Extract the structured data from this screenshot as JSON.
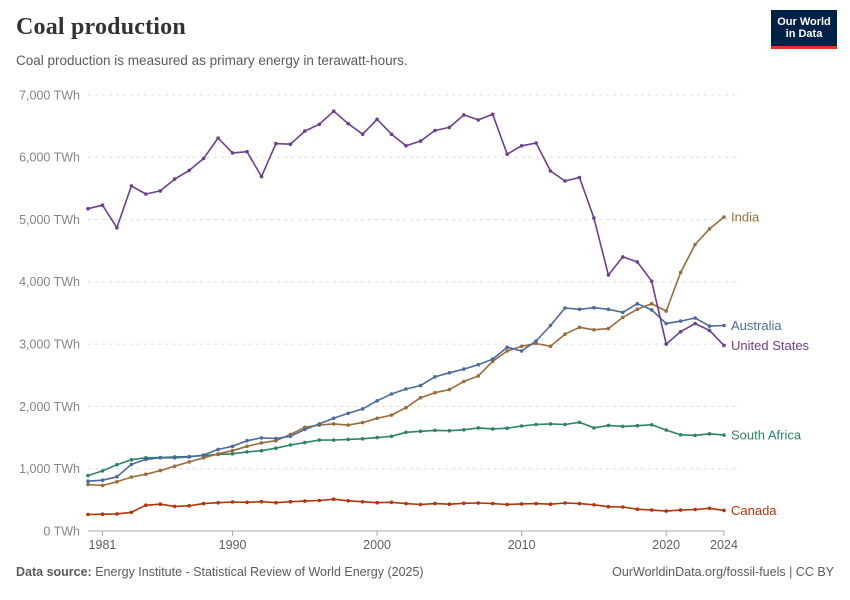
{
  "header": {
    "title": "Coal production",
    "subtitle": "Coal production is measured as primary energy in terawatt-hours."
  },
  "logo": {
    "line1": "Our World",
    "line2": "in Data",
    "bg_color": "#002147",
    "accent_color": "#e03321"
  },
  "footer": {
    "source_label": "Data source:",
    "source_text": " Energy Institute - Statistical Review of World Energy (2025)",
    "right_text": "OurWorldinData.org/fossil-fuels | CC BY"
  },
  "chart_data": {
    "type": "line",
    "title": "Coal production",
    "unit": "TWh",
    "grid": "horizontal-dashed",
    "legend_position": "end-of-line-labels",
    "ylim": [
      0,
      7000
    ],
    "y_ticks": [
      0,
      1000,
      2000,
      3000,
      4000,
      5000,
      6000,
      7000
    ],
    "y_tick_labels": [
      "0 TWh",
      "1,000 TWh",
      "2,000 TWh",
      "3,000 TWh",
      "4,000 TWh",
      "5,000 TWh",
      "6,000 TWh",
      "7,000 TWh"
    ],
    "x_ticks": [
      1981,
      1990,
      2000,
      2010,
      2020,
      2024
    ],
    "x_tick_labels": [
      "1981",
      "1990",
      "2000",
      "2010",
      "2020",
      "2024"
    ],
    "x": [
      1980,
      1981,
      1982,
      1983,
      1984,
      1985,
      1986,
      1987,
      1988,
      1989,
      1990,
      1991,
      1992,
      1993,
      1994,
      1995,
      1996,
      1997,
      1998,
      1999,
      2000,
      2001,
      2002,
      2003,
      2004,
      2005,
      2006,
      2007,
      2008,
      2009,
      2010,
      2011,
      2012,
      2013,
      2014,
      2015,
      2016,
      2017,
      2018,
      2019,
      2020,
      2021,
      2022,
      2023,
      2024
    ],
    "series": [
      {
        "name": "Canada",
        "color": "#B13507",
        "values": [
          265,
          270,
          275,
          300,
          415,
          430,
          395,
          405,
          440,
          455,
          465,
          460,
          470,
          455,
          470,
          480,
          490,
          510,
          485,
          470,
          455,
          460,
          440,
          425,
          440,
          430,
          445,
          450,
          440,
          425,
          435,
          440,
          430,
          450,
          440,
          420,
          390,
          385,
          350,
          335,
          320,
          335,
          345,
          365,
          330
        ]
      },
      {
        "name": "South Africa",
        "color": "#2C8465",
        "values": [
          890,
          965,
          1065,
          1145,
          1175,
          1180,
          1190,
          1195,
          1210,
          1230,
          1240,
          1270,
          1290,
          1330,
          1380,
          1420,
          1460,
          1460,
          1470,
          1480,
          1500,
          1520,
          1585,
          1600,
          1615,
          1610,
          1625,
          1655,
          1640,
          1650,
          1685,
          1710,
          1720,
          1710,
          1745,
          1655,
          1695,
          1680,
          1690,
          1705,
          1620,
          1545,
          1535,
          1560,
          1540
        ]
      },
      {
        "name": "India",
        "color": "#996D39",
        "values": [
          745,
          730,
          790,
          865,
          910,
          970,
          1040,
          1110,
          1175,
          1240,
          1290,
          1360,
          1415,
          1450,
          1550,
          1665,
          1700,
          1720,
          1700,
          1740,
          1810,
          1860,
          1980,
          2140,
          2220,
          2270,
          2400,
          2490,
          2725,
          2890,
          2965,
          3010,
          2965,
          3160,
          3270,
          3230,
          3250,
          3430,
          3560,
          3650,
          3530,
          4150,
          4600,
          4850,
          5040
        ]
      },
      {
        "name": "Australia",
        "color": "#4C6A9C",
        "values": [
          800,
          815,
          870,
          1070,
          1150,
          1175,
          1175,
          1190,
          1220,
          1310,
          1360,
          1450,
          1495,
          1485,
          1520,
          1630,
          1720,
          1810,
          1890,
          1960,
          2090,
          2200,
          2280,
          2335,
          2475,
          2540,
          2600,
          2670,
          2760,
          2950,
          2890,
          3050,
          3300,
          3580,
          3560,
          3585,
          3560,
          3510,
          3650,
          3550,
          3330,
          3370,
          3420,
          3290,
          3300
        ]
      },
      {
        "name": "United States",
        "color": "#6D3E91",
        "values": [
          5175,
          5230,
          4870,
          5540,
          5410,
          5460,
          5650,
          5790,
          5980,
          6310,
          6070,
          6090,
          5690,
          6220,
          6210,
          6420,
          6530,
          6740,
          6540,
          6370,
          6610,
          6370,
          6185,
          6260,
          6430,
          6480,
          6680,
          6600,
          6690,
          6050,
          6185,
          6230,
          5780,
          5620,
          5675,
          5025,
          4110,
          4400,
          4320,
          4010,
          3000,
          3200,
          3330,
          3220,
          2980
        ]
      }
    ]
  }
}
